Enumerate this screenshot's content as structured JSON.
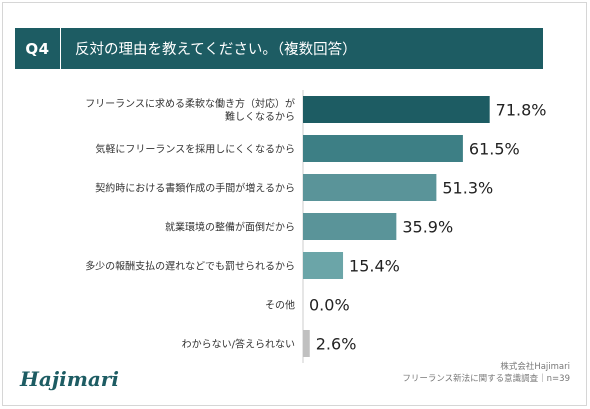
{
  "header": {
    "badge": "Q4",
    "title": "反対の理由を教えてください。（複数回答）"
  },
  "footer": {
    "brand": "Hajimari",
    "source_line1": "株式会社Hajimari",
    "source_line2": "フリーランス新法に関する意識調査｜n=39"
  },
  "chart_data": {
    "type": "bar",
    "orientation": "horizontal",
    "categories": [
      [
        "フリーランスに求める柔軟な働き方（対応）が",
        "難しくなるから"
      ],
      [
        "気軽にフリーランスを採用しにくくなるから"
      ],
      [
        "契約時における書類作成の手間が増えるから"
      ],
      [
        "就業環境の整備が面倒だから"
      ],
      [
        "多少の報酬支払の遅れなどでも罰せられるから"
      ],
      [
        "その他"
      ],
      [
        "わからない/答えられない"
      ]
    ],
    "values": [
      71.8,
      61.5,
      51.3,
      35.9,
      15.4,
      0.0,
      2.6
    ],
    "value_labels": [
      "71.8%",
      "61.5%",
      "51.3%",
      "35.9%",
      "15.4%",
      "0.0%",
      "2.6%"
    ],
    "colors": [
      "#1d5c63",
      "#3d7f85",
      "#5a9499",
      "#5a9499",
      "#6ba5a8",
      "#6ba5a8",
      "#c0c0c0"
    ],
    "xlim": [
      0,
      100
    ],
    "grid": false,
    "legend": "none",
    "title": "",
    "xlabel": "",
    "ylabel": ""
  }
}
